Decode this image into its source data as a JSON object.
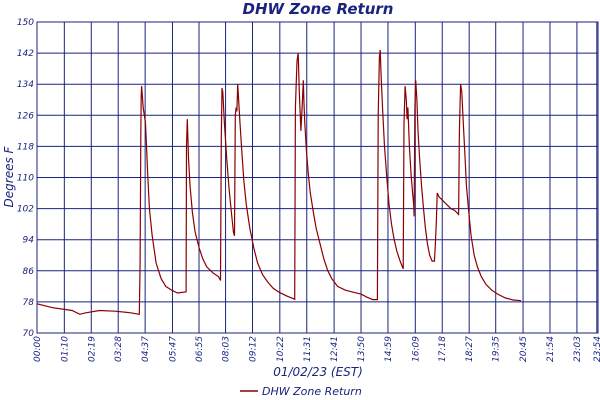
{
  "chart_data": {
    "type": "line",
    "title": "DHW Zone Return",
    "xlabel": "01/02/23 (EST)",
    "ylabel": "Degrees F",
    "ylim": [
      70,
      150
    ],
    "yticks": [
      70,
      78,
      86,
      94,
      102,
      110,
      118,
      126,
      134,
      142,
      150
    ],
    "xlim": [
      0,
      1437
    ],
    "xtick_labels": [
      "00:00",
      "01:10",
      "02:19",
      "03:28",
      "04:37",
      "05:47",
      "06:55",
      "08:03",
      "09:12",
      "10:22",
      "11:31",
      "12:41",
      "13:50",
      "14:59",
      "16:09",
      "17:18",
      "18:27",
      "19:35",
      "20:45",
      "21:54",
      "23:03",
      "23:54"
    ],
    "xtick_minutes": [
      0,
      70,
      139,
      208,
      277,
      347,
      415,
      483,
      552,
      622,
      691,
      761,
      830,
      899,
      969,
      1038,
      1107,
      1175,
      1245,
      1314,
      1383,
      1434
    ],
    "grid": true,
    "legend_position": "bottom-center",
    "colors": {
      "series": "#8b0000",
      "grid": "#1a237e",
      "text": "#1a237e"
    },
    "series": [
      {
        "name": "DHW Zone Return",
        "points": [
          [
            0,
            77.5
          ],
          [
            40,
            76.5
          ],
          [
            90,
            75.8
          ],
          [
            110,
            74.8
          ],
          [
            125,
            75.2
          ],
          [
            160,
            75.8
          ],
          [
            200,
            75.6
          ],
          [
            240,
            75.2
          ],
          [
            262,
            74.8
          ],
          [
            264,
            88
          ],
          [
            266,
            120
          ],
          [
            267,
            131
          ],
          [
            268,
            133.5
          ],
          [
            272,
            128
          ],
          [
            278,
            124
          ],
          [
            283,
            112
          ],
          [
            288,
            102
          ],
          [
            295,
            95
          ],
          [
            305,
            88
          ],
          [
            318,
            84
          ],
          [
            330,
            82
          ],
          [
            345,
            81
          ],
          [
            360,
            80.3
          ],
          [
            382,
            80.6
          ],
          [
            383,
            118
          ],
          [
            385,
            125
          ],
          [
            388,
            115
          ],
          [
            392,
            108
          ],
          [
            398,
            101
          ],
          [
            405,
            96
          ],
          [
            415,
            92
          ],
          [
            425,
            89
          ],
          [
            435,
            87
          ],
          [
            450,
            85.5
          ],
          [
            465,
            84.5
          ],
          [
            470,
            83.5
          ],
          [
            472,
            120
          ],
          [
            474,
            133
          ],
          [
            476,
            132
          ],
          [
            480,
            124
          ],
          [
            486,
            115
          ],
          [
            492,
            107
          ],
          [
            498,
            101
          ],
          [
            503,
            96
          ],
          [
            506,
            95
          ],
          [
            508,
            126
          ],
          [
            510,
            128
          ],
          [
            512,
            127
          ],
          [
            514,
            134
          ],
          [
            516,
            131
          ],
          [
            520,
            124
          ],
          [
            525,
            116
          ],
          [
            530,
            109
          ],
          [
            536,
            103
          ],
          [
            545,
            97
          ],
          [
            555,
            92
          ],
          [
            565,
            88
          ],
          [
            578,
            85
          ],
          [
            592,
            83
          ],
          [
            605,
            81.5
          ],
          [
            620,
            80.5
          ],
          [
            640,
            79.5
          ],
          [
            660,
            78.7
          ],
          [
            662,
            128
          ],
          [
            666,
            140
          ],
          [
            669,
            142
          ],
          [
            672,
            132
          ],
          [
            676,
            122
          ],
          [
            680,
            130
          ],
          [
            682,
            135
          ],
          [
            684,
            129
          ],
          [
            686,
            124
          ],
          [
            690,
            117
          ],
          [
            695,
            111
          ],
          [
            700,
            106
          ],
          [
            708,
            101
          ],
          [
            715,
            97
          ],
          [
            725,
            93
          ],
          [
            735,
            89
          ],
          [
            745,
            86
          ],
          [
            755,
            84
          ],
          [
            770,
            82
          ],
          [
            790,
            81
          ],
          [
            810,
            80.5
          ],
          [
            830,
            80
          ],
          [
            845,
            79.2
          ],
          [
            860,
            78.6
          ],
          [
            872,
            78.6
          ],
          [
            874,
            126
          ],
          [
            877,
            141
          ],
          [
            879,
            142.8
          ],
          [
            882,
            135
          ],
          [
            886,
            126
          ],
          [
            890,
            118
          ],
          [
            896,
            110
          ],
          [
            902,
            103
          ],
          [
            908,
            98
          ],
          [
            915,
            94
          ],
          [
            922,
            91
          ],
          [
            930,
            88.5
          ],
          [
            938,
            86.5
          ],
          [
            940,
            124
          ],
          [
            943,
            133.5
          ],
          [
            946,
            130
          ],
          [
            948,
            125
          ],
          [
            950,
            128
          ],
          [
            954,
            118
          ],
          [
            958,
            111
          ],
          [
            962,
            106
          ],
          [
            965,
            103
          ],
          [
            966,
            100
          ],
          [
            968,
            128
          ],
          [
            970,
            135
          ],
          [
            973,
            130
          ],
          [
            976,
            122
          ],
          [
            980,
            115
          ],
          [
            985,
            108
          ],
          [
            990,
            102
          ],
          [
            995,
            97
          ],
          [
            1000,
            93
          ],
          [
            1006,
            90
          ],
          [
            1012,
            88.5
          ],
          [
            1018,
            88.5
          ],
          [
            1020,
            92
          ],
          [
            1023,
            99
          ],
          [
            1025,
            106
          ],
          [
            1030,
            105
          ],
          [
            1040,
            104
          ],
          [
            1050,
            103
          ],
          [
            1060,
            102
          ],
          [
            1070,
            101.5
          ],
          [
            1080,
            100.5
          ],
          [
            1082,
            122
          ],
          [
            1085,
            134
          ],
          [
            1088,
            132
          ],
          [
            1092,
            124
          ],
          [
            1096,
            116
          ],
          [
            1100,
            108
          ],
          [
            1106,
            101
          ],
          [
            1112,
            95
          ],
          [
            1120,
            90
          ],
          [
            1128,
            87
          ],
          [
            1138,
            84.5
          ],
          [
            1150,
            82.5
          ],
          [
            1165,
            81
          ],
          [
            1180,
            80
          ],
          [
            1200,
            79
          ],
          [
            1220,
            78.5
          ],
          [
            1240,
            78.3
          ]
        ]
      }
    ]
  }
}
